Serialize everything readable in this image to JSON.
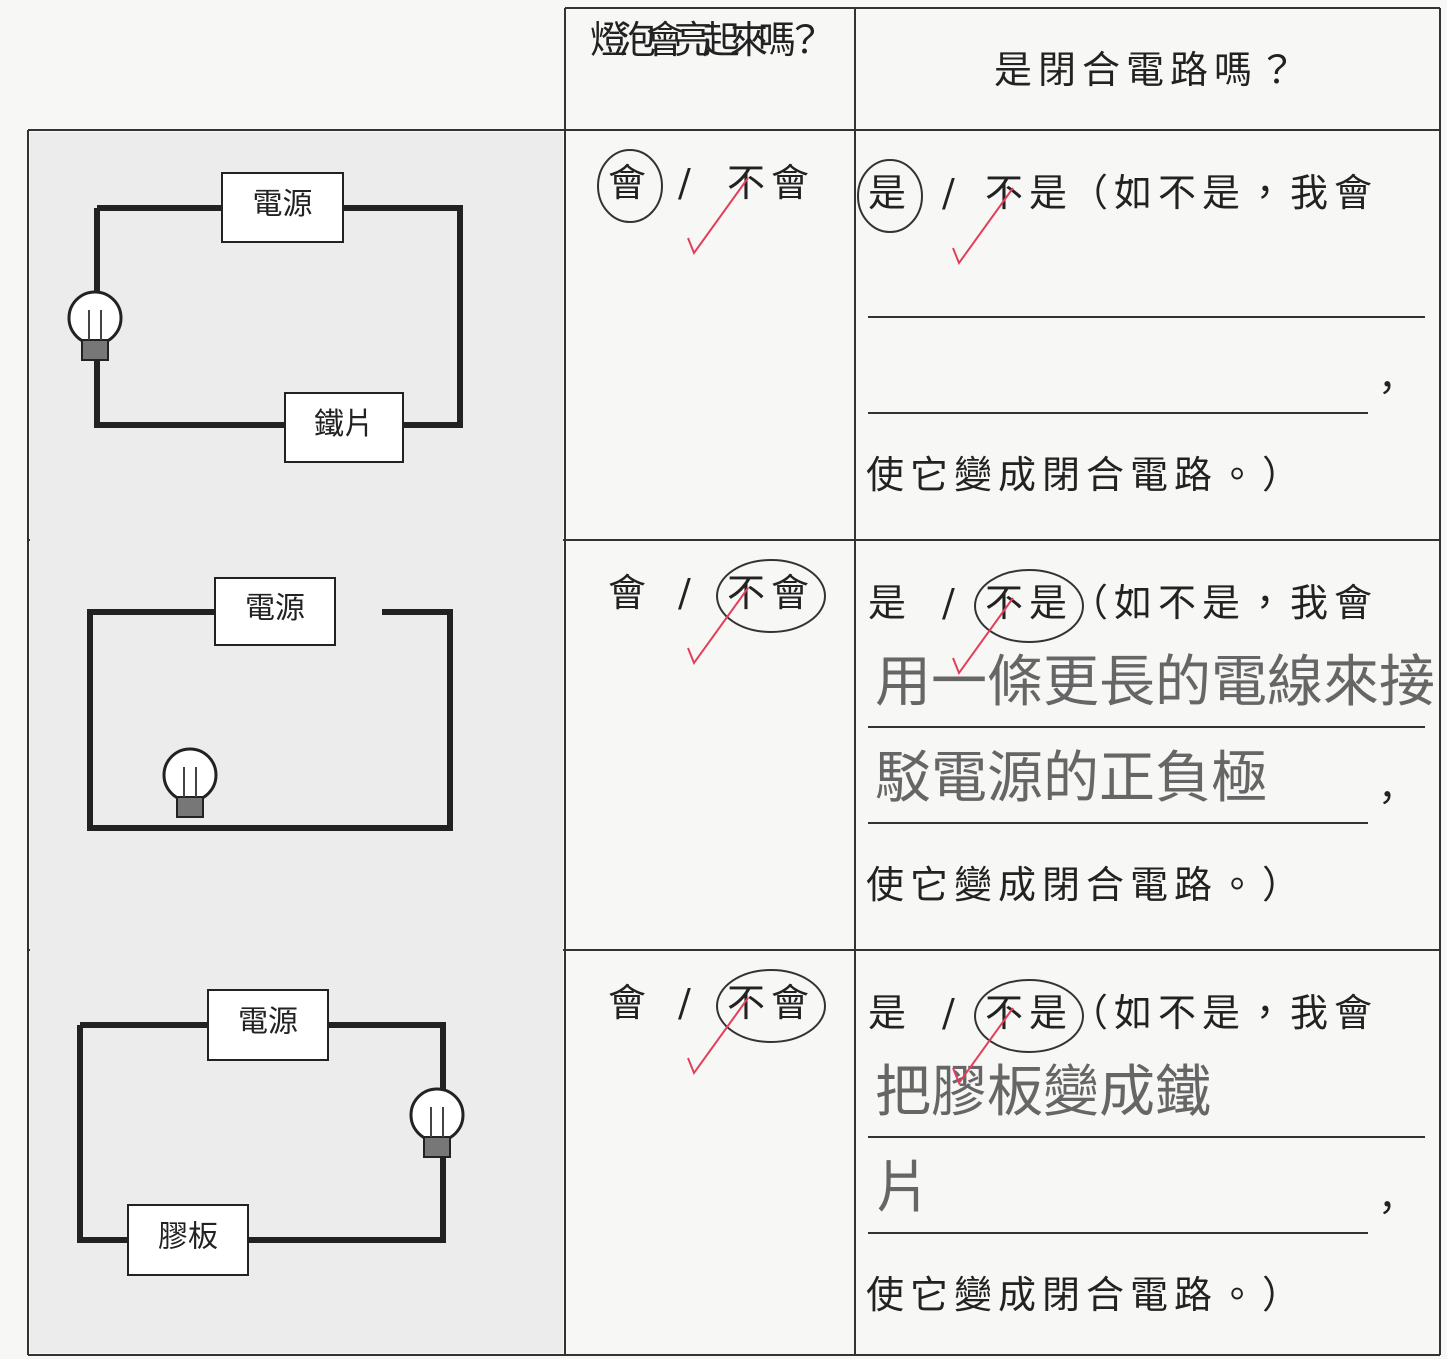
{
  "header": {
    "bulb_question": "燈泡會亮起來嗎？",
    "circuit_question": "是閉合電路嗎？"
  },
  "rows": [
    {
      "circuit_labels": [
        "電源",
        "鐵片"
      ],
      "bulb_answer": {
        "options": [
          "會",
          "不會"
        ],
        "separator": "/",
        "circled": 0
      },
      "circuit_answer": {
        "options": [
          "是",
          "不是"
        ],
        "separator": "/",
        "circled": 0,
        "prompt": "（如不是，我會",
        "comma": "，",
        "ending": "使它變成閉合電路。）"
      }
    },
    {
      "circuit_labels": [
        "電源"
      ],
      "bulb_answer": {
        "options": [
          "會",
          "不會"
        ],
        "separator": "/",
        "circled": 1
      },
      "circuit_answer": {
        "options": [
          "是",
          "不是"
        ],
        "separator": "/",
        "circled": 1,
        "prompt": "（如不是，我會",
        "comma": "，",
        "ending": "使它變成閉合電路。）",
        "handwriting": [
          "用一條更長的電線來接",
          "駁電源的正負極"
        ]
      }
    },
    {
      "circuit_labels": [
        "電源",
        "膠板"
      ],
      "bulb_answer": {
        "options": [
          "會",
          "不會"
        ],
        "separator": "/",
        "circled": 1
      },
      "circuit_answer": {
        "options": [
          "是",
          "不是"
        ],
        "separator": "/",
        "circled": 1,
        "prompt": "（如不是，我會",
        "comma": "，",
        "ending": "使它變成閉合電路。）",
        "handwriting": [
          "把膠板變成鐵",
          "片"
        ]
      }
    }
  ]
}
